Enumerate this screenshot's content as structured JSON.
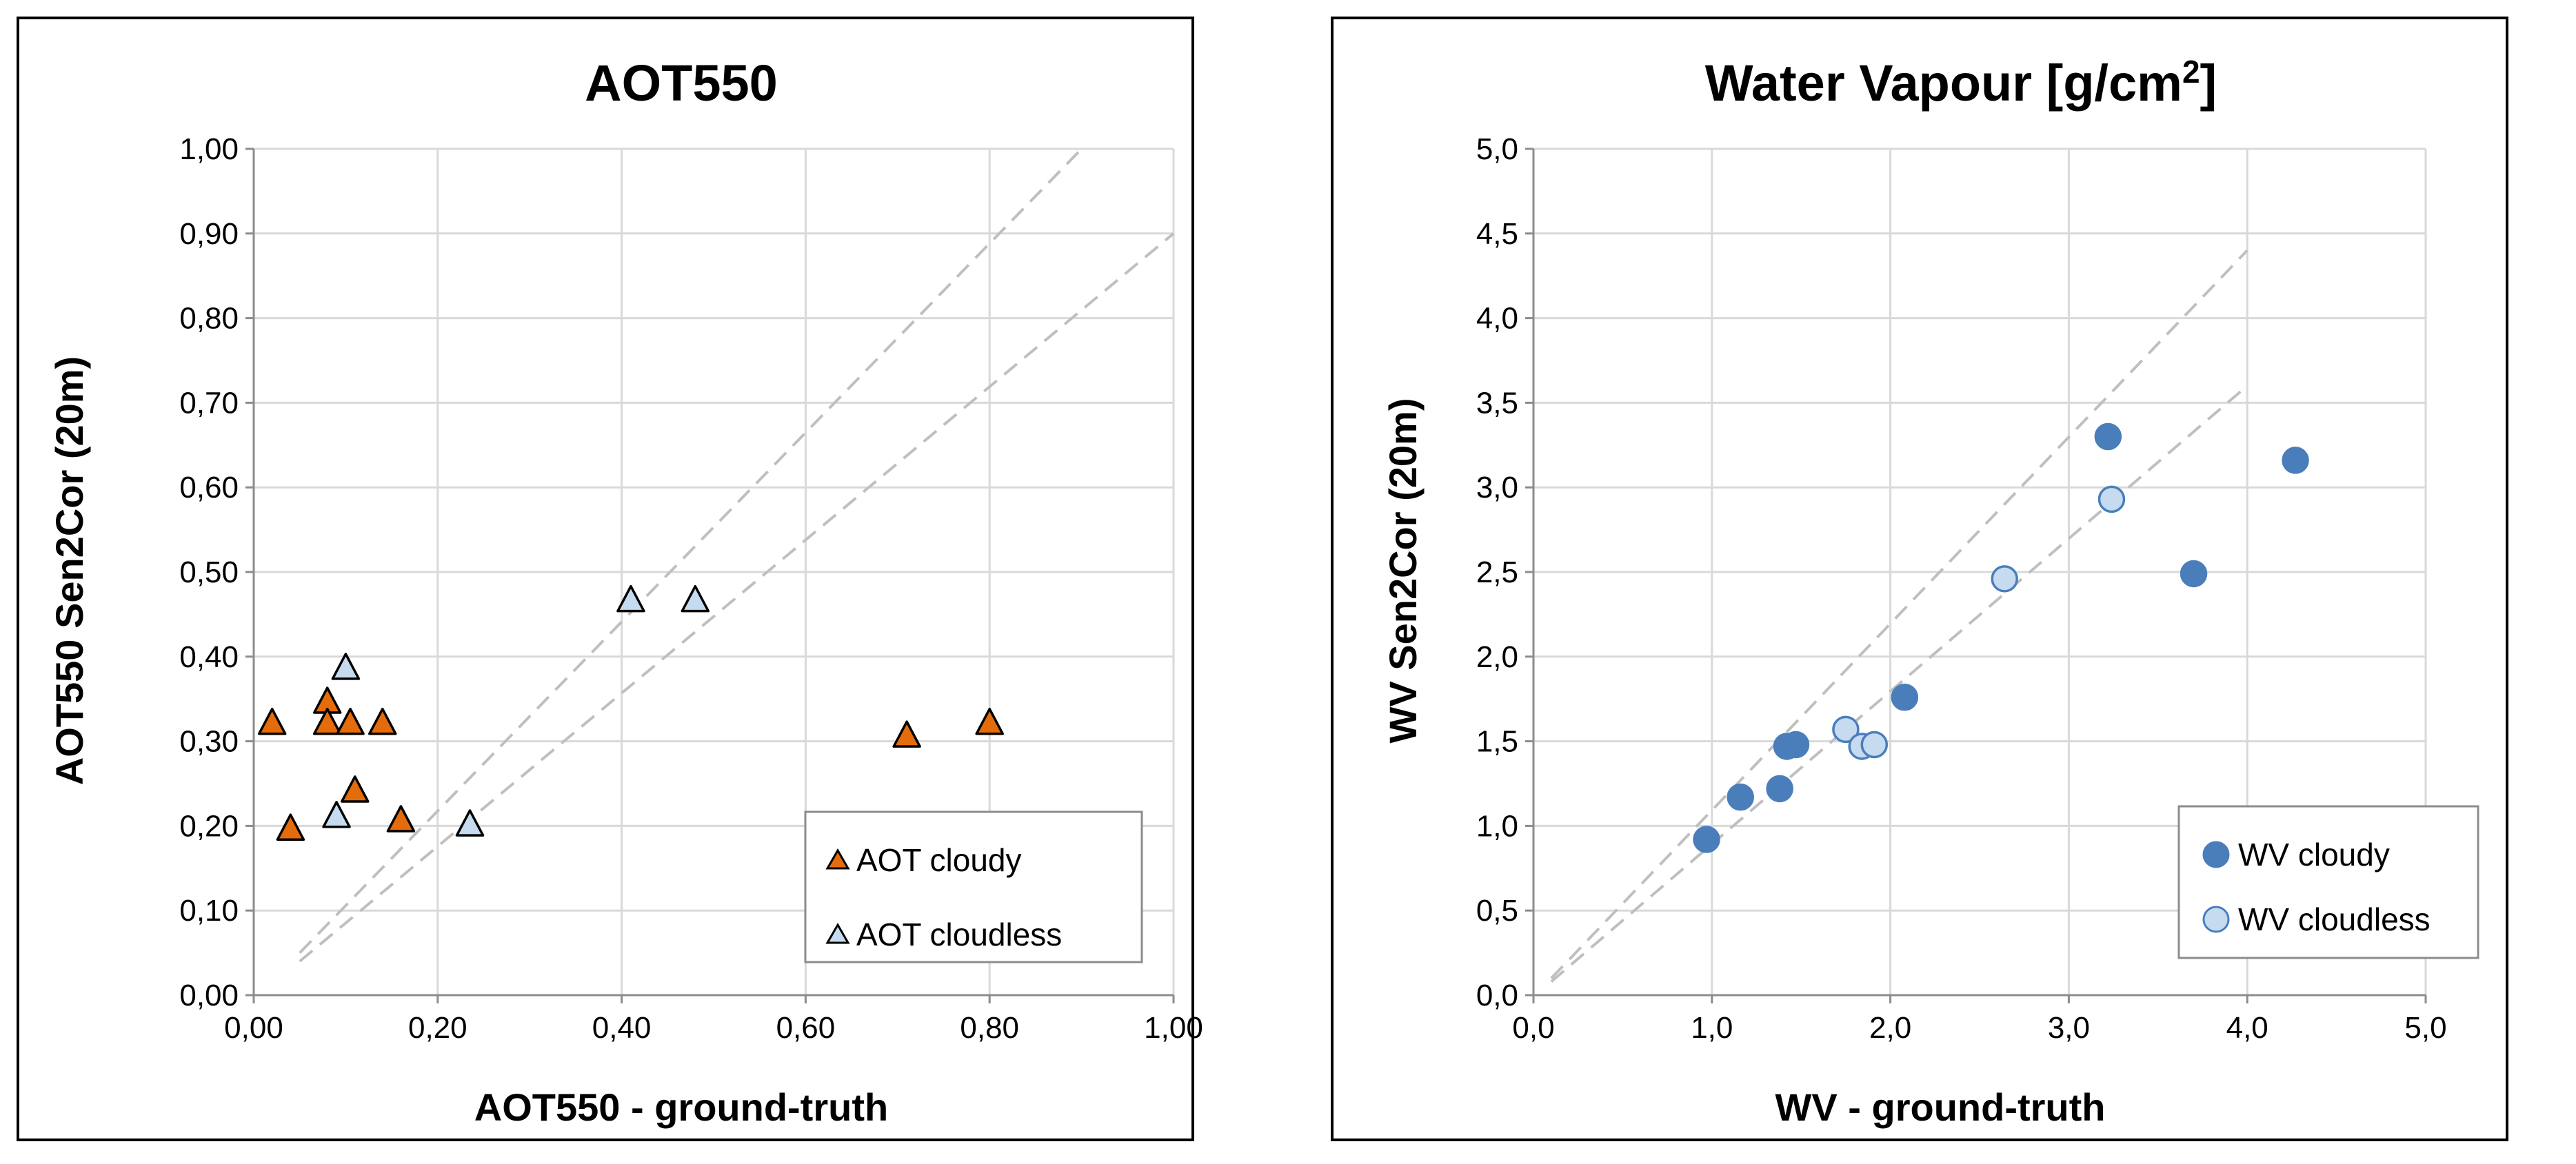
{
  "chart_data": [
    {
      "type": "scatter",
      "title": "AOT550",
      "xlabel": "AOT550 - ground-truth",
      "ylabel": "AOT550 Sen2Cor (20m)",
      "xlim": [
        0,
        1
      ],
      "ylim": [
        0,
        1
      ],
      "xticks": [
        "0,00",
        "0,20",
        "0,40",
        "0,60",
        "0,80",
        "1,00"
      ],
      "yticks": [
        "0,00",
        "0,10",
        "0,20",
        "0,30",
        "0,40",
        "0,50",
        "0,60",
        "0,70",
        "0,80",
        "0,90",
        "1,00"
      ],
      "grid": true,
      "legend_position": "bottom-right",
      "reference_lines": [
        {
          "x": [
            0.05,
            0.9
          ],
          "y": [
            0.05,
            1.0
          ]
        },
        {
          "x": [
            0.05,
            1.0
          ],
          "y": [
            0.04,
            0.9
          ]
        }
      ],
      "series": [
        {
          "name": "AOT cloudy",
          "marker": "triangle",
          "color": "#e46c0a",
          "points": [
            [
              0.02,
              0.32
            ],
            [
              0.04,
              0.195
            ],
            [
              0.08,
              0.345
            ],
            [
              0.08,
              0.32
            ],
            [
              0.105,
              0.32
            ],
            [
              0.11,
              0.24
            ],
            [
              0.14,
              0.32
            ],
            [
              0.16,
              0.205
            ],
            [
              0.71,
              0.305
            ],
            [
              0.8,
              0.32
            ]
          ]
        },
        {
          "name": "AOT cloudless",
          "marker": "triangle",
          "color": "#c6dbef",
          "points": [
            [
              0.1,
              0.385
            ],
            [
              0.09,
              0.21
            ],
            [
              0.235,
              0.2
            ],
            [
              0.41,
              0.465
            ],
            [
              0.48,
              0.465
            ]
          ]
        }
      ]
    },
    {
      "type": "scatter",
      "title": "Water Vapour [g/cm",
      "title_sup": "2",
      "title_end": "]",
      "xlabel": "WV - ground-truth",
      "ylabel": "WV Sen2Cor (20m)",
      "xlim": [
        0,
        5
      ],
      "ylim": [
        0,
        5
      ],
      "xticks": [
        "0,0",
        "1,0",
        "2,0",
        "3,0",
        "4,0",
        "5,0"
      ],
      "yticks": [
        "0,0",
        "0,5",
        "1,0",
        "1,5",
        "2,0",
        "2,5",
        "3,0",
        "3,5",
        "4,0",
        "4,5",
        "5,0"
      ],
      "grid": true,
      "legend_position": "bottom-right",
      "reference_lines": [
        {
          "x": [
            0.1,
            4.0
          ],
          "y": [
            0.1,
            4.4
          ]
        },
        {
          "x": [
            0.1,
            4.0
          ],
          "y": [
            0.08,
            3.6
          ]
        }
      ],
      "series": [
        {
          "name": "WV cloudy",
          "marker": "circle",
          "color": "#4a7ebb",
          "points": [
            [
              0.97,
              0.92
            ],
            [
              1.16,
              1.17
            ],
            [
              1.38,
              1.22
            ],
            [
              1.42,
              1.47
            ],
            [
              1.47,
              1.48
            ],
            [
              2.08,
              1.76
            ],
            [
              3.22,
              3.3
            ],
            [
              3.7,
              2.49
            ],
            [
              4.27,
              3.16
            ]
          ]
        },
        {
          "name": "WV cloudless",
          "marker": "circle",
          "color": "#c6dbef",
          "points": [
            [
              1.75,
              1.57
            ],
            [
              1.84,
              1.47
            ],
            [
              1.91,
              1.48
            ],
            [
              2.64,
              2.46
            ],
            [
              3.24,
              2.93
            ]
          ]
        }
      ]
    }
  ]
}
